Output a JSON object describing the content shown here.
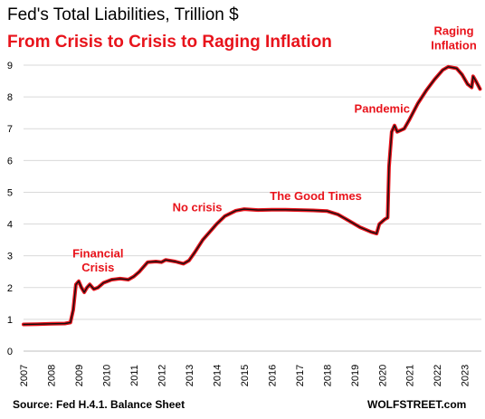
{
  "colors": {
    "accent": "#e8131b",
    "line_outer": "#e8131b",
    "line_inner": "#111111",
    "grid": "#d9d9d9"
  },
  "footer": {
    "source": "Source: Fed H.4.1. Balance Sheet",
    "brand": "WOLFSTREET.com"
  },
  "chart_data": {
    "type": "line",
    "title": "Fed's Total Liabilities, Trillion $",
    "subtitle": "From Crisis to Crisis to Raging Inflation",
    "xlabel": "",
    "ylabel": "",
    "xlim": [
      2007,
      2023.6
    ],
    "ylim": [
      0,
      9
    ],
    "grid": "horizontal",
    "x_ticks": [
      "2007",
      "2008",
      "2009",
      "2010",
      "2011",
      "2012",
      "2013",
      "2014",
      "2015",
      "2016",
      "2017",
      "2018",
      "2019",
      "2020",
      "2021",
      "2022",
      "2023"
    ],
    "y_ticks": [
      "0",
      "1",
      "2",
      "3",
      "4",
      "5",
      "6",
      "7",
      "8",
      "9"
    ],
    "annotations": [
      {
        "text": "Financial",
        "x": 2009.7,
        "y": 2.95
      },
      {
        "text": "Crisis",
        "x": 2009.7,
        "y": 2.5
      },
      {
        "text": "No crisis",
        "x": 2013.3,
        "y": 4.4
      },
      {
        "text": "The Good Times",
        "x": 2017.6,
        "y": 4.75
      },
      {
        "text": "Pandemic",
        "x": 2020.0,
        "y": 7.5
      },
      {
        "text": "Raging",
        "x": 2022.6,
        "y": 9.95
      },
      {
        "text": "Inflation",
        "x": 2022.6,
        "y": 9.5
      }
    ],
    "series": [
      {
        "values": [
          [
            2007.0,
            0.84
          ],
          [
            2007.5,
            0.85
          ],
          [
            2008.0,
            0.86
          ],
          [
            2008.5,
            0.87
          ],
          [
            2008.7,
            0.9
          ],
          [
            2008.8,
            1.3
          ],
          [
            2008.9,
            2.1
          ],
          [
            2009.0,
            2.2
          ],
          [
            2009.1,
            2.0
          ],
          [
            2009.2,
            1.85
          ],
          [
            2009.3,
            2.0
          ],
          [
            2009.4,
            2.1
          ],
          [
            2009.55,
            1.95
          ],
          [
            2009.7,
            2.0
          ],
          [
            2009.9,
            2.15
          ],
          [
            2010.2,
            2.25
          ],
          [
            2010.5,
            2.28
          ],
          [
            2010.8,
            2.25
          ],
          [
            2011.0,
            2.35
          ],
          [
            2011.2,
            2.5
          ],
          [
            2011.5,
            2.8
          ],
          [
            2011.8,
            2.82
          ],
          [
            2012.0,
            2.8
          ],
          [
            2012.15,
            2.87
          ],
          [
            2012.5,
            2.82
          ],
          [
            2012.8,
            2.75
          ],
          [
            2013.0,
            2.85
          ],
          [
            2013.2,
            3.1
          ],
          [
            2013.5,
            3.5
          ],
          [
            2013.8,
            3.8
          ],
          [
            2014.0,
            4.0
          ],
          [
            2014.3,
            4.25
          ],
          [
            2014.7,
            4.42
          ],
          [
            2015.0,
            4.47
          ],
          [
            2015.5,
            4.44
          ],
          [
            2016.0,
            4.45
          ],
          [
            2016.5,
            4.45
          ],
          [
            2017.0,
            4.44
          ],
          [
            2017.5,
            4.43
          ],
          [
            2018.0,
            4.41
          ],
          [
            2018.4,
            4.3
          ],
          [
            2018.8,
            4.1
          ],
          [
            2019.2,
            3.9
          ],
          [
            2019.6,
            3.75
          ],
          [
            2019.8,
            3.7
          ],
          [
            2019.9,
            4.0
          ],
          [
            2020.1,
            4.15
          ],
          [
            2020.2,
            4.2
          ],
          [
            2020.25,
            5.8
          ],
          [
            2020.35,
            6.9
          ],
          [
            2020.45,
            7.1
          ],
          [
            2020.55,
            6.9
          ],
          [
            2020.8,
            7.0
          ],
          [
            2021.0,
            7.3
          ],
          [
            2021.3,
            7.8
          ],
          [
            2021.6,
            8.2
          ],
          [
            2021.9,
            8.55
          ],
          [
            2022.2,
            8.85
          ],
          [
            2022.4,
            8.95
          ],
          [
            2022.7,
            8.9
          ],
          [
            2022.9,
            8.7
          ],
          [
            2023.1,
            8.4
          ],
          [
            2023.25,
            8.3
          ],
          [
            2023.3,
            8.65
          ],
          [
            2023.4,
            8.5
          ],
          [
            2023.55,
            8.25
          ]
        ]
      }
    ]
  }
}
